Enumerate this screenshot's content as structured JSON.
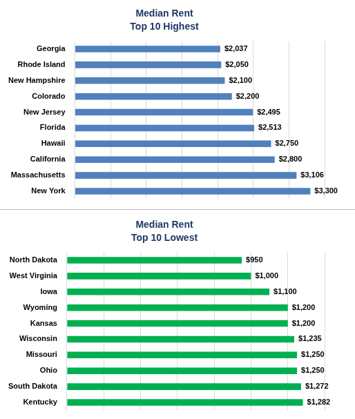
{
  "chart_data": [
    {
      "type": "bar",
      "orientation": "horizontal",
      "title": "Median Rent",
      "subtitle": "Top 10 Highest",
      "categories": [
        "Georgia",
        "Rhode Island",
        "New Hampshire",
        "Colorado",
        "New Jersey",
        "Florida",
        "Hawaii",
        "California",
        "Massachusetts",
        "New York"
      ],
      "values": [
        2037,
        2050,
        2100,
        2200,
        2495,
        2513,
        2750,
        2800,
        3106,
        3300
      ],
      "value_labels": [
        "$2,037",
        "$2,050",
        "$2,100",
        "$2,200",
        "$2,495",
        "$2,513",
        "$2,750",
        "$2,800",
        "$3,106",
        "$3,300"
      ],
      "color": "#4f81bd",
      "xlim": [
        0,
        3500
      ],
      "xticks": [
        0,
        500,
        1000,
        1500,
        2000,
        2500,
        3000,
        3500
      ],
      "grid": true,
      "data_labels": true,
      "tick_labels": "y"
    },
    {
      "type": "bar",
      "orientation": "horizontal",
      "title": "Median Rent",
      "subtitle": "Top 10 Lowest",
      "categories": [
        "North Dakota",
        "West Virginia",
        "Iowa",
        "Wyoming",
        "Kansas",
        "Wisconsin",
        "Missouri",
        "Ohio",
        "South Dakota",
        "Kentucky"
      ],
      "values": [
        950,
        1000,
        1100,
        1200,
        1200,
        1235,
        1250,
        1250,
        1272,
        1282
      ],
      "value_labels": [
        "$950",
        "$1,000",
        "$1,100",
        "$1,200",
        "$1,200",
        "$1,235",
        "$1,250",
        "$1,250",
        "$1,272",
        "$1,282"
      ],
      "color": "#00b050",
      "xlim": [
        0,
        1400
      ],
      "xticks": [
        0,
        200,
        400,
        600,
        800,
        1000,
        1200,
        1400
      ],
      "grid": true,
      "data_labels": true,
      "tick_labels": "y"
    }
  ]
}
